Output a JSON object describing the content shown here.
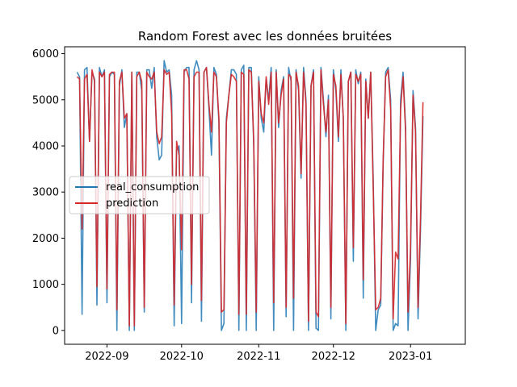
{
  "chart_data": {
    "type": "line",
    "title": "Random Forest avec les données bruitées",
    "xlabel": "",
    "ylabel": "",
    "x_start": "2022-08-20",
    "xlim": [
      "2022-08-15",
      "2023-01-23"
    ],
    "ylim": [
      -300,
      6150
    ],
    "x_ticks": [
      {
        "date": "2022-09-01",
        "label": "2022-09"
      },
      {
        "date": "2022-10-01",
        "label": "2022-10"
      },
      {
        "date": "2022-11-01",
        "label": "2022-11"
      },
      {
        "date": "2022-12-01",
        "label": "2022-12"
      },
      {
        "date": "2023-01-01",
        "label": "2023-01"
      }
    ],
    "y_ticks": [
      0,
      1000,
      2000,
      3000,
      4000,
      5000,
      6000
    ],
    "grid": false,
    "legend_position": "center-left",
    "series": [
      {
        "name": "real_consumption",
        "color": "#1f77b4",
        "values": [
          5600,
          5500,
          350,
          5650,
          5700,
          4100,
          5600,
          5450,
          550,
          5700,
          5500,
          5650,
          600,
          5500,
          5600,
          5550,
          0,
          5300,
          5650,
          4400,
          4700,
          0,
          5600,
          0,
          5600,
          5600,
          5200,
          400,
          5650,
          5650,
          5250,
          5700,
          4200,
          3700,
          3800,
          5850,
          5600,
          5650,
          5100,
          100,
          3900,
          4000,
          150,
          5600,
          5700,
          5700,
          600,
          5650,
          5850,
          5650,
          200,
          5600,
          5700,
          4800,
          3800,
          5700,
          5550,
          4500,
          0,
          150,
          4600,
          5100,
          5650,
          5650,
          5550,
          0,
          5650,
          5750,
          0,
          5700,
          5700,
          4000,
          0,
          5500,
          4600,
          4300,
          5450,
          5000,
          5700,
          0,
          5650,
          4400,
          5200,
          5500,
          300,
          5700,
          5400,
          0,
          5650,
          5200,
          3300,
          5700,
          5000,
          0,
          5300,
          5650,
          50,
          0,
          5700,
          5000,
          4200,
          5100,
          250,
          5650,
          5200,
          4100,
          5650,
          4600,
          0,
          5400,
          5600,
          1500,
          5650,
          5350,
          5600,
          700,
          5450,
          4600,
          5600,
          3300,
          0,
          450,
          550,
          3600,
          5600,
          5700,
          5000,
          0,
          150,
          100,
          5000,
          5600,
          4400,
          0,
          1550,
          5200,
          4400,
          250,
          2150,
          4650
        ]
      },
      {
        "name": "prediction",
        "color": "#d62728",
        "values": [
          5500,
          5450,
          2200,
          5450,
          5550,
          4100,
          5650,
          5400,
          950,
          5600,
          5500,
          5600,
          900,
          5550,
          5600,
          5600,
          450,
          5400,
          5600,
          4600,
          4700,
          100,
          5600,
          100,
          5500,
          5600,
          5400,
          500,
          5600,
          5500,
          5450,
          5600,
          4300,
          4050,
          4200,
          5650,
          5550,
          5600,
          4700,
          550,
          4100,
          3800,
          1750,
          5650,
          5650,
          5450,
          1000,
          5500,
          5600,
          5600,
          650,
          5600,
          5700,
          4900,
          4300,
          5600,
          5500,
          4600,
          400,
          450,
          4500,
          5100,
          5550,
          5500,
          5400,
          350,
          5600,
          5550,
          350,
          5650,
          5600,
          4100,
          400,
          5400,
          4700,
          4500,
          5500,
          4900,
          5600,
          600,
          5600,
          4500,
          5100,
          5450,
          500,
          5550,
          5500,
          700,
          5600,
          5300,
          3400,
          5600,
          4900,
          200,
          5300,
          5600,
          400,
          300,
          5650,
          4900,
          4300,
          5000,
          500,
          5550,
          5300,
          4200,
          5550,
          4600,
          150,
          5400,
          5600,
          1800,
          5550,
          5400,
          5550,
          1100,
          5400,
          4600,
          5600,
          3100,
          450,
          500,
          700,
          3700,
          5500,
          5650,
          4800,
          250,
          1700,
          1550,
          4800,
          5500,
          4300,
          400,
          1800,
          5100,
          4300,
          500,
          2400,
          4950
        ]
      }
    ]
  }
}
